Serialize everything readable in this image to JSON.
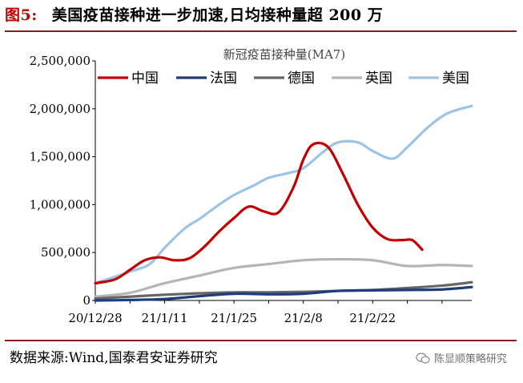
{
  "figure": {
    "label": "图5:",
    "title": "美国疫苗接种进一步加速,日均接种量超 200 万"
  },
  "source": "数据来源:Wind,国泰君安证券研究",
  "watermark": {
    "text": "陈显顺策略研究",
    "icon": "wechat-icon"
  },
  "chart_data": {
    "type": "line",
    "title": "新冠疫苗接种量(MA7)",
    "x_ticks": [
      "20/12/28",
      "21/1/11",
      "21/1/25",
      "21/2/8",
      "21/2/22"
    ],
    "x_range": [
      "2020-12-28",
      "2021-03-14"
    ],
    "ylim": [
      0,
      2500000
    ],
    "y_ticks": [
      "0",
      "500,000",
      "1,000,000",
      "1,500,000",
      "2,000,000",
      "2,500,000"
    ],
    "y_tick_values": [
      0,
      500000,
      1000000,
      1500000,
      2000000,
      2500000
    ],
    "grid": false,
    "legend_position": "top",
    "series": [
      {
        "name": "中国",
        "color": "#c00000",
        "x": [
          "2020-12-28",
          "2021-01-01",
          "2021-01-04",
          "2021-01-07",
          "2021-01-10",
          "2021-01-13",
          "2021-01-16",
          "2021-01-19",
          "2021-01-22",
          "2021-01-25",
          "2021-01-28",
          "2021-01-31",
          "2021-02-03",
          "2021-02-06",
          "2021-02-08",
          "2021-02-10",
          "2021-02-13",
          "2021-02-16",
          "2021-02-19",
          "2021-02-22",
          "2021-02-25",
          "2021-02-28",
          "2021-03-02",
          "2021-03-04"
        ],
        "y": [
          180000,
          220000,
          320000,
          420000,
          450000,
          420000,
          440000,
          560000,
          720000,
          860000,
          980000,
          930000,
          920000,
          1180000,
          1470000,
          1630000,
          1600000,
          1320000,
          1000000,
          760000,
          640000,
          630000,
          630000,
          530000
        ]
      },
      {
        "name": "法国",
        "color": "#1f3d7a",
        "x": [
          "2020-12-28",
          "2021-01-04",
          "2021-01-11",
          "2021-01-18",
          "2021-01-25",
          "2021-02-01",
          "2021-02-08",
          "2021-02-15",
          "2021-02-22",
          "2021-03-01",
          "2021-03-08",
          "2021-03-14"
        ],
        "y": [
          0,
          5000,
          15000,
          45000,
          70000,
          65000,
          70000,
          100000,
          105000,
          110000,
          115000,
          140000
        ]
      },
      {
        "name": "德国",
        "color": "#666666",
        "x": [
          "2020-12-28",
          "2021-01-04",
          "2021-01-11",
          "2021-01-18",
          "2021-01-25",
          "2021-02-01",
          "2021-02-08",
          "2021-02-15",
          "2021-02-22",
          "2021-03-01",
          "2021-03-08",
          "2021-03-14"
        ],
        "y": [
          20000,
          40000,
          60000,
          75000,
          85000,
          85000,
          90000,
          100000,
          110000,
          130000,
          155000,
          190000
        ]
      },
      {
        "name": "英国",
        "color": "#b5b5b5",
        "x": [
          "2020-12-28",
          "2021-01-04",
          "2021-01-11",
          "2021-01-18",
          "2021-01-25",
          "2021-02-01",
          "2021-02-08",
          "2021-02-15",
          "2021-02-22",
          "2021-03-01",
          "2021-03-08",
          "2021-03-14"
        ],
        "y": [
          40000,
          80000,
          180000,
          260000,
          340000,
          380000,
          420000,
          430000,
          420000,
          360000,
          370000,
          360000
        ]
      },
      {
        "name": "美国",
        "color": "#9dc3e6",
        "x": [
          "2020-12-28",
          "2021-01-04",
          "2021-01-08",
          "2021-01-11",
          "2021-01-15",
          "2021-01-18",
          "2021-01-22",
          "2021-01-25",
          "2021-01-29",
          "2021-02-01",
          "2021-02-05",
          "2021-02-08",
          "2021-02-12",
          "2021-02-15",
          "2021-02-19",
          "2021-02-22",
          "2021-02-26",
          "2021-03-01",
          "2021-03-05",
          "2021-03-09",
          "2021-03-14"
        ],
        "y": [
          180000,
          300000,
          380000,
          550000,
          750000,
          850000,
          1000000,
          1100000,
          1200000,
          1280000,
          1330000,
          1380000,
          1550000,
          1650000,
          1650000,
          1560000,
          1480000,
          1600000,
          1800000,
          1950000,
          2030000
        ]
      }
    ]
  }
}
